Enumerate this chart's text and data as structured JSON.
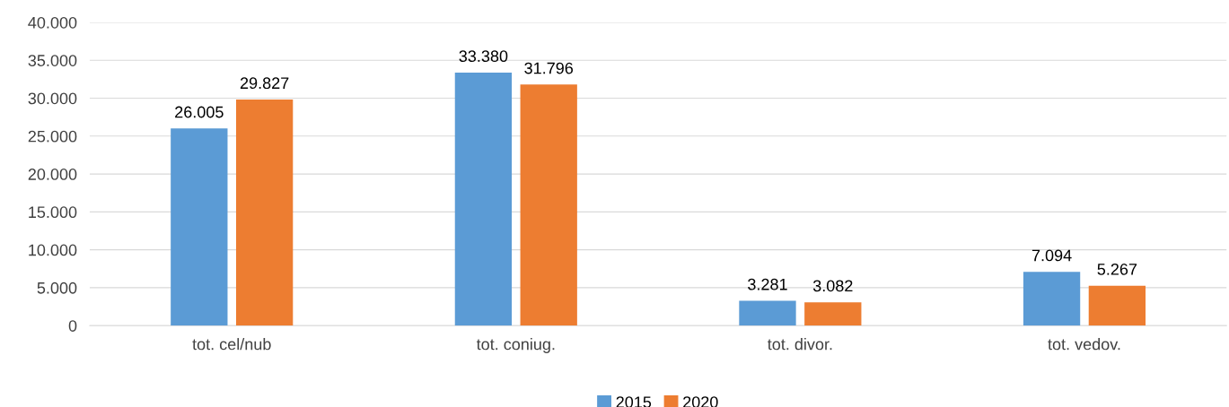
{
  "chart_data": {
    "type": "bar",
    "categories": [
      "tot. cel/nub",
      "tot. coniug.",
      "tot. divor.",
      "tot. vedov."
    ],
    "series": [
      {
        "name": "2015",
        "color": "#5b9bd5",
        "values": [
          26005,
          33380,
          3281,
          7094
        ],
        "value_labels": [
          "26.005",
          "33.380",
          "3.281",
          "7.094"
        ]
      },
      {
        "name": "2020",
        "color": "#ed7d31",
        "values": [
          29827,
          31796,
          3082,
          5267
        ],
        "value_labels": [
          "29.827",
          "31.796",
          "3.082",
          "5.267"
        ]
      }
    ],
    "ylim": [
      0,
      40000
    ],
    "yticks": [
      {
        "value": 0,
        "label": "0"
      },
      {
        "value": 5000,
        "label": "5.000"
      },
      {
        "value": 10000,
        "label": "10.000"
      },
      {
        "value": 15000,
        "label": "15.000"
      },
      {
        "value": 20000,
        "label": "20.000"
      },
      {
        "value": 25000,
        "label": "25.000"
      },
      {
        "value": 30000,
        "label": "30.000"
      },
      {
        "value": 35000,
        "label": "35.000"
      },
      {
        "value": 40000,
        "label": "40.000"
      }
    ],
    "grid": "y",
    "legend": "bottom"
  }
}
